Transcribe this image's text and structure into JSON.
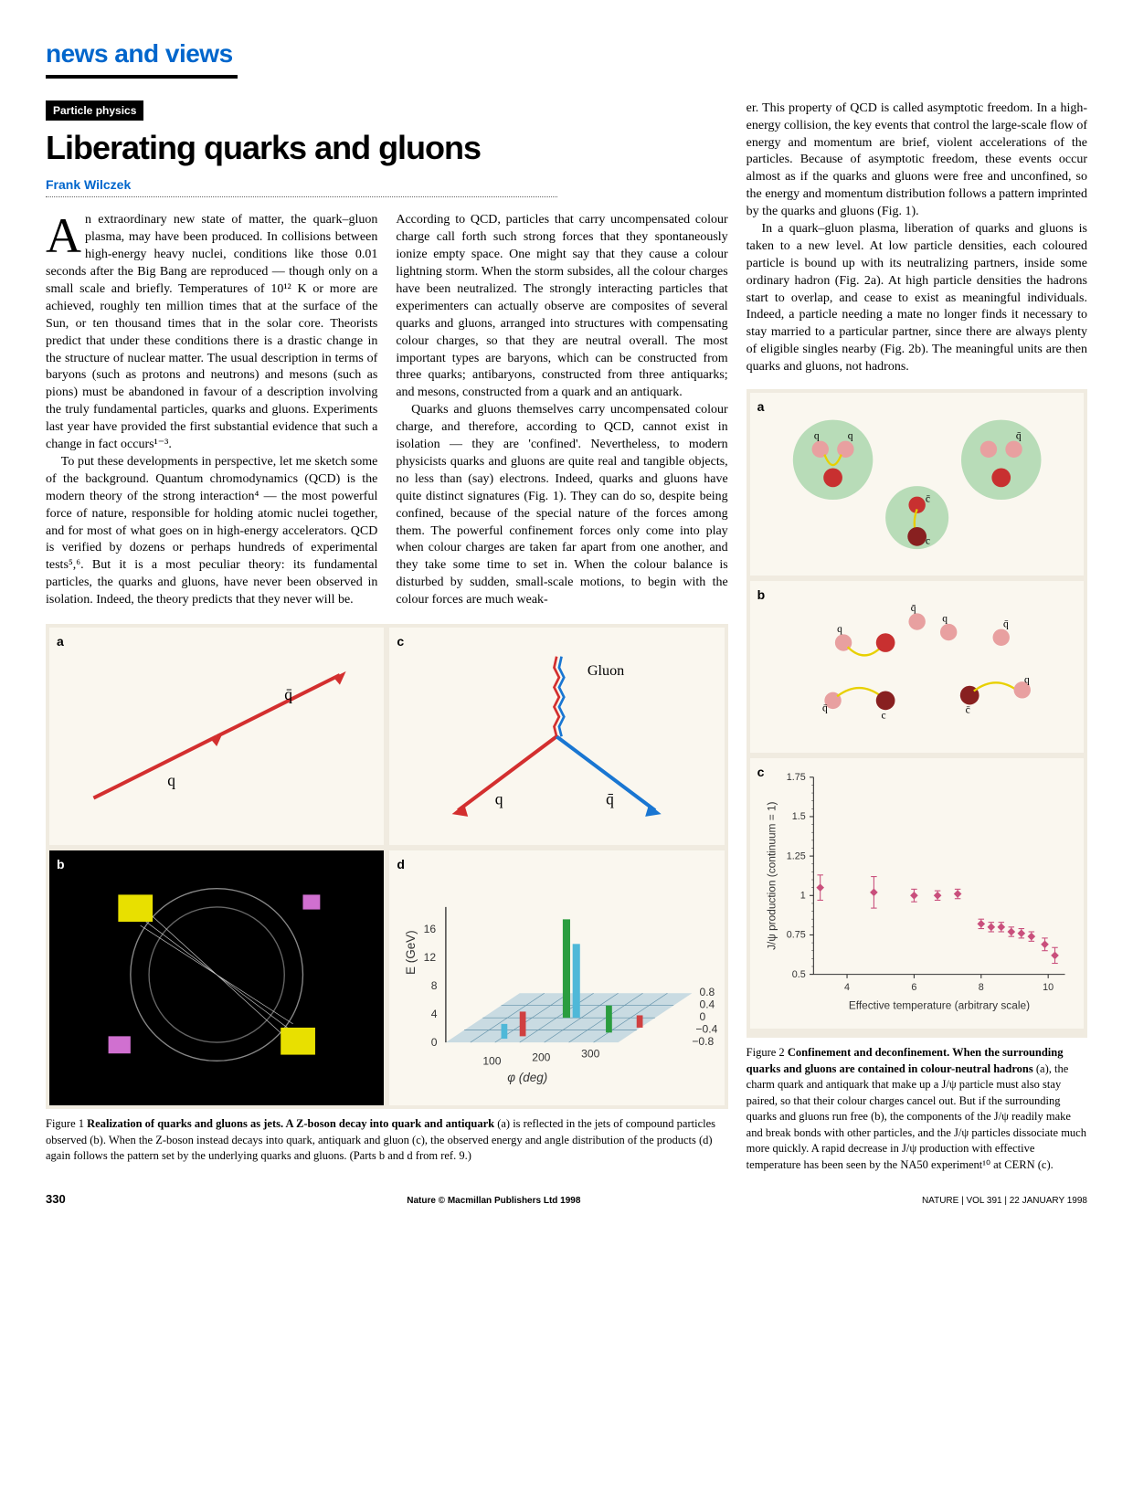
{
  "section": "news and views",
  "category": "Particle physics",
  "title": "Liberating quarks and gluons",
  "author": "Frank Wilczek",
  "body": {
    "col1": [
      "An extraordinary new state of matter, the quark–gluon plasma, may have been produced. In collisions between high-energy heavy nuclei, conditions like those 0.01 seconds after the Big Bang are reproduced — though only on a small scale and briefly. Temperatures of 10¹² K or more are achieved, roughly ten million times that at the surface of the Sun, or ten thousand times that in the solar core. Theorists predict that under these conditions there is a drastic change in the structure of nuclear matter. The usual description in terms of baryons (such as protons and neutrons) and mesons (such as pions) must be abandoned in favour of a description involving the truly fundamental particles, quarks and gluons. Experiments last year have provided the first substantial evidence that such a change in fact occurs¹⁻³.",
      "To put these developments in perspective, let me sketch some of the background. Quantum chromodynamics (QCD) is the modern theory of the strong interaction⁴ — the most powerful force of nature, responsible for holding atomic nuclei together, and for most of what goes on in high-energy accelerators. QCD is verified by dozens or perhaps hundreds of experimental tests⁵,⁶. But it is a most peculiar theory: its fundamental particles, the quarks and gluons, have never been observed in isolation. Indeed, the theory predicts that they never will be."
    ],
    "col2": [
      "According to QCD, particles that carry uncompensated colour charge call forth such strong forces that they spontaneously ionize empty space. One might say that they cause a colour lightning storm. When the storm subsides, all the colour charges have been neutralized. The strongly interacting particles that experimenters can actually observe are composites of several quarks and gluons, arranged into structures with compensating colour charges, so that they are neutral overall. The most important types are baryons, which can be constructed from three quarks; antibaryons, constructed from three antiquarks; and mesons, constructed from a quark and an antiquark.",
      "Quarks and gluons themselves carry uncompensated colour charge, and therefore, according to QCD, cannot exist in isolation — they are 'confined'. Nevertheless, to modern physicists quarks and gluons are quite real and tangible objects, no less than (say) electrons. Indeed, quarks and gluons have quite distinct signatures (Fig. 1). They can do so, despite being confined, because of the special nature of the forces among them. The powerful confinement forces only come into play when colour charges are taken far apart from one another, and they take some time to set in. When the colour balance is disturbed by sudden, small-scale motions, to begin with the colour forces are much weak-"
    ],
    "col3_top": [
      "er. This property of QCD is called asymptotic freedom. In a high-energy collision, the key events that control the large-scale flow of energy and momentum are brief, violent accelerations of the particles. Because of asymptotic freedom, these events occur almost as if the quarks and gluons were free and unconfined, so the energy and momentum distribution follows a pattern imprinted by the quarks and gluons (Fig. 1).",
      "In a quark–gluon plasma, liberation of quarks and gluons is taken to a new level. At low particle densities, each coloured particle is bound up with its neutralizing partners, inside some ordinary hadron (Fig. 2a). At high particle densities the hadrons start to overlap, and cease to exist as meaningful individuals. Indeed, a particle needing a mate no longer finds it necessary to stay married to a particular partner, since there are always plenty of eligible singles nearby (Fig. 2b). The meaningful units are then quarks and gluons, not hadrons."
    ]
  },
  "fig1": {
    "labels": {
      "a": "a",
      "b": "b",
      "c": "c",
      "d": "d"
    },
    "panel_a": {
      "q": "q",
      "qbar": "q̄"
    },
    "panel_c": {
      "q": "q",
      "qbar": "q̄",
      "gluon": "Gluon"
    },
    "panel_d": {
      "ylabel": "E (GeV)",
      "xlabel": "φ (deg)",
      "yticks": [
        "0",
        "4",
        "8",
        "12",
        "16"
      ],
      "xticks": [
        "100",
        "200",
        "300"
      ],
      "zticks": [
        "−0.8",
        "−0.4",
        "0",
        "0.4",
        "0.8"
      ]
    },
    "caption_lead": "Figure 1 ",
    "caption_bold": "Realization of quarks and gluons as jets. A Z-boson decay into quark and antiquark ",
    "caption_rest": "(a) is reflected in the jets of compound particles observed (b). When the Z-boson instead decays into quark, antiquark and gluon (c), the observed energy and angle distribution of the products (d) again follows the pattern set by the underlying quarks and gluons. (Parts b and d from ref. 9.)"
  },
  "fig2": {
    "labels": {
      "a": "a",
      "b": "b",
      "c": "c"
    },
    "panel_a": {
      "q": "q",
      "qbar": "q̄",
      "c": "c",
      "cbar": "c̄"
    },
    "panel_b": {
      "q": "q",
      "qbar": "q̄",
      "c": "c",
      "cbar": "c̄"
    },
    "panel_c": {
      "type": "scatter",
      "ylabel": "J/ψ production (continuum = 1)",
      "xlabel": "Effective temperature (arbitrary scale)",
      "ylim": [
        0.5,
        1.75
      ],
      "yticks": [
        "0.5",
        "0.75",
        "1",
        "1.25",
        "1.5",
        "1.75"
      ],
      "xlim": [
        3,
        10.5
      ],
      "xticks": [
        "4",
        "6",
        "8",
        "10"
      ],
      "points": [
        {
          "x": 3.2,
          "y": 1.05,
          "err": 0.08
        },
        {
          "x": 4.8,
          "y": 1.02,
          "err": 0.1
        },
        {
          "x": 6.0,
          "y": 1.0,
          "err": 0.04
        },
        {
          "x": 6.7,
          "y": 1.0,
          "err": 0.03
        },
        {
          "x": 7.3,
          "y": 1.01,
          "err": 0.03
        },
        {
          "x": 8.0,
          "y": 0.82,
          "err": 0.03
        },
        {
          "x": 8.3,
          "y": 0.8,
          "err": 0.03
        },
        {
          "x": 8.6,
          "y": 0.8,
          "err": 0.03
        },
        {
          "x": 8.9,
          "y": 0.77,
          "err": 0.03
        },
        {
          "x": 9.2,
          "y": 0.76,
          "err": 0.03
        },
        {
          "x": 9.5,
          "y": 0.74,
          "err": 0.03
        },
        {
          "x": 9.9,
          "y": 0.69,
          "err": 0.04
        },
        {
          "x": 10.2,
          "y": 0.62,
          "err": 0.05
        }
      ],
      "marker_color": "#c94f7c",
      "axis_color": "#333333"
    },
    "caption_lead": "Figure 2 ",
    "caption_bold": "Confinement and deconfinement. When the surrounding quarks and gluons are contained in colour-neutral hadrons ",
    "caption_rest": "(a), the charm quark and antiquark that make up a J/ψ particle must also stay paired, so that their colour charges cancel out. But if the surrounding quarks and gluons run free (b), the components of the J/ψ readily make and break bonds with other particles, and the J/ψ particles dissociate much more quickly. A rapid decrease in J/ψ production with effective temperature has been seen by the NA50 experiment¹⁰ at CERN (c)."
  },
  "footer": {
    "page": "330",
    "copyright": "Nature © Macmillan Publishers Ltd 1998",
    "info": "NATURE | VOL 391 | 22 JANUARY 1998"
  },
  "colors": {
    "blue": "#0066cc",
    "panel_bg": "#f0ebe0",
    "subpanel_bg": "#faf7ef",
    "red_line": "#d32f2f",
    "blue_line": "#1976d2",
    "hadron_green": "#b8dcb8"
  }
}
